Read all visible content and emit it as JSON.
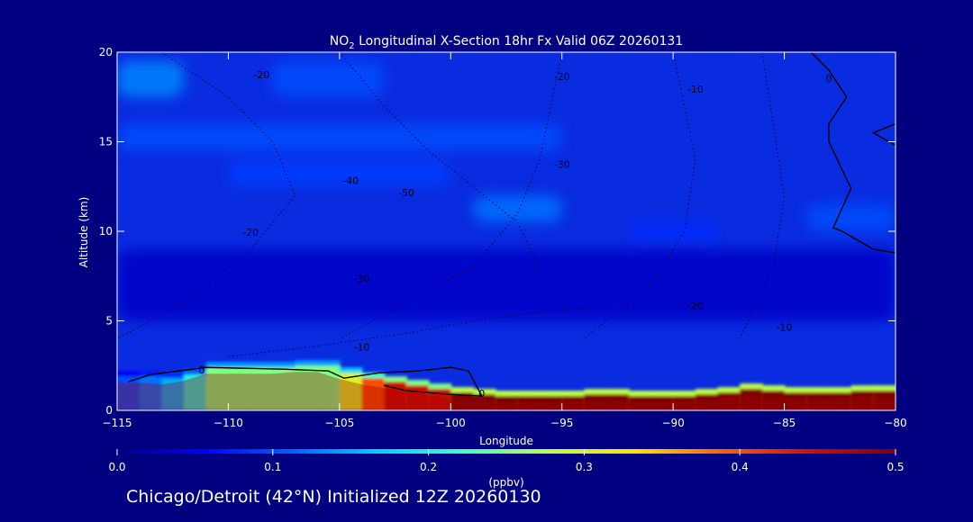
{
  "chart_data": {
    "type": "heatmap",
    "title": {
      "prefix": "NO",
      "subscript": "2",
      "suffix": " Longitudinal X-Section 18hr  Fx Valid 06Z 20260131"
    },
    "xlabel": "Longitude",
    "ylabel": "Altitude (km)",
    "xlim": [
      -115,
      -80
    ],
    "ylim": [
      0,
      20
    ],
    "x_ticks": [
      -115,
      -110,
      -105,
      -100,
      -95,
      -90,
      -85,
      -80
    ],
    "y_ticks": [
      0,
      5,
      10,
      15,
      20
    ],
    "colorbar": {
      "label": "(ppbv)",
      "range": [
        0.0,
        0.5
      ],
      "tick_labels": [
        "0.0",
        "0.1",
        "0.2",
        "0.3",
        "0.4",
        "0.5"
      ],
      "colors": [
        "#000080",
        "#0000ff",
        "#0060ff",
        "#00d0ff",
        "#40ffc0",
        "#c0ff40",
        "#ffe000",
        "#ff6000",
        "#d01000",
        "#800000"
      ]
    },
    "surface_profile": {
      "lon": [
        -115,
        -114,
        -113,
        -112,
        -111,
        -110,
        -109,
        -108,
        -107,
        -106,
        -105,
        -104,
        -103,
        -102,
        -101,
        -100,
        -99,
        -98,
        -97,
        -96,
        -95,
        -94,
        -93,
        -92,
        -91,
        -90,
        -89,
        -88,
        -87,
        -86,
        -85,
        -84,
        -83,
        -82,
        -81,
        -80
      ],
      "alt_km": [
        1.7,
        1.7,
        1.6,
        1.8,
        2.2,
        2.2,
        2.2,
        2.2,
        2.3,
        2.3,
        1.9,
        1.6,
        1.4,
        1.2,
        1.0,
        0.8,
        0.7,
        0.6,
        0.6,
        0.6,
        0.6,
        0.7,
        0.7,
        0.6,
        0.6,
        0.6,
        0.7,
        0.8,
        1.0,
        0.9,
        0.8,
        0.8,
        0.8,
        0.9,
        0.9,
        0.9
      ]
    },
    "surface_layer_ppbv": [
      0.1,
      0.12,
      0.15,
      0.2,
      0.25,
      0.25,
      0.25,
      0.25,
      0.25,
      0.25,
      0.3,
      0.4,
      0.45,
      0.45,
      0.45,
      0.5,
      0.5,
      0.5,
      0.5,
      0.5,
      0.5,
      0.5,
      0.5,
      0.5,
      0.5,
      0.5,
      0.5,
      0.5,
      0.5,
      0.5,
      0.5,
      0.5,
      0.5,
      0.5,
      0.5,
      0.5
    ],
    "upper_bands": [
      {
        "lon_range": [
          -115,
          -112
        ],
        "alt_range": [
          17.5,
          19.5
        ],
        "ppbv": 0.13
      },
      {
        "lon_range": [
          -108,
          -103
        ],
        "alt_range": [
          17.5,
          19.5
        ],
        "ppbv": 0.1
      },
      {
        "lon_range": [
          -115,
          -95
        ],
        "alt_range": [
          14.5,
          16.0
        ],
        "ppbv": 0.1
      },
      {
        "lon_range": [
          -110,
          -100
        ],
        "alt_range": [
          12.5,
          14.0
        ],
        "ppbv": 0.09
      },
      {
        "lon_range": [
          -99,
          -95
        ],
        "alt_range": [
          10.5,
          12.0
        ],
        "ppbv": 0.12
      },
      {
        "lon_range": [
          -92,
          -88
        ],
        "alt_range": [
          9.5,
          10.5
        ],
        "ppbv": 0.08
      },
      {
        "lon_range": [
          -84,
          -80
        ],
        "alt_range": [
          10.0,
          11.5
        ],
        "ppbv": 0.1
      },
      {
        "lon_range": [
          -115,
          -80
        ],
        "alt_range": [
          5.0,
          9.0
        ],
        "ppbv": 0.03
      }
    ],
    "contour_labels": [
      {
        "lon": -108.5,
        "alt": 18.7,
        "text": "-20"
      },
      {
        "lon": -104.5,
        "alt": 12.8,
        "text": "-40"
      },
      {
        "lon": -102.0,
        "alt": 12.1,
        "text": "-50"
      },
      {
        "lon": -109.0,
        "alt": 9.9,
        "text": "-20"
      },
      {
        "lon": -104.0,
        "alt": 7.3,
        "text": "-30"
      },
      {
        "lon": -104.0,
        "alt": 3.5,
        "text": "-10"
      },
      {
        "lon": -111.2,
        "alt": 2.2,
        "text": "0"
      },
      {
        "lon": -95.0,
        "alt": 18.6,
        "text": "-20"
      },
      {
        "lon": -95.0,
        "alt": 13.7,
        "text": "-30"
      },
      {
        "lon": -89.0,
        "alt": 17.9,
        "text": "-10"
      },
      {
        "lon": -89.0,
        "alt": 5.8,
        "text": "-20"
      },
      {
        "lon": -85.0,
        "alt": 4.6,
        "text": "-10"
      },
      {
        "lon": -83.0,
        "alt": 18.5,
        "text": "0"
      },
      {
        "lon": -98.6,
        "alt": 0.9,
        "text": "0"
      }
    ],
    "zero_contour_right": {
      "lon": [
        -83.8,
        -83.0,
        -82.2,
        -83.0,
        -83.0,
        -82.0,
        -82.8,
        -82.4,
        -81.0,
        -80.0
      ],
      "alt": [
        20.0,
        19.0,
        17.5,
        16.0,
        15.0,
        12.4,
        10.2,
        10.0,
        9.0,
        8.8
      ]
    },
    "zero_contour_edge": {
      "lon": [
        -80.0,
        -81.0,
        -80.0
      ],
      "alt": [
        16.0,
        15.5,
        14.8
      ]
    },
    "zero_contour_low": {
      "lon": [
        -114.5,
        -113.5,
        -111.0,
        -107.5,
        -105.5,
        -104.8,
        -103.2,
        -101.5,
        -100.0,
        -99.2,
        -98.6,
        -100.2,
        -102.0,
        -103.0
      ],
      "alt": [
        1.6,
        2.0,
        2.4,
        2.3,
        2.2,
        1.8,
        2.1,
        2.2,
        2.4,
        2.2,
        0.8,
        0.9,
        1.1,
        1.4
      ]
    },
    "dotted_contours": [
      {
        "lon": [
          -113,
          -110,
          -108,
          -107,
          -109,
          -112,
          -115
        ],
        "alt": [
          20,
          17.5,
          15,
          12,
          9,
          6,
          4
        ]
      },
      {
        "lon": [
          -105,
          -103,
          -101,
          -99,
          -97,
          -96
        ],
        "alt": [
          20,
          17,
          14.5,
          12.5,
          10.5,
          8
        ]
      },
      {
        "lon": [
          -110,
          -106,
          -102,
          -99,
          -96,
          -93
        ],
        "alt": [
          3.0,
          3.6,
          4.3,
          5.0,
          5.5,
          5.8
        ]
      },
      {
        "lon": [
          -95,
          -95.5,
          -96,
          -97,
          -99,
          -102,
          -105
        ],
        "alt": [
          20,
          17,
          14,
          11,
          8,
          6,
          4
        ]
      },
      {
        "lon": [
          -90,
          -89.5,
          -89,
          -89.5,
          -91,
          -94
        ],
        "alt": [
          20,
          17,
          14,
          10,
          7,
          4
        ]
      },
      {
        "lon": [
          -86,
          -85.5,
          -85,
          -85.5,
          -87
        ],
        "alt": [
          20,
          16,
          12,
          8,
          4
        ]
      }
    ]
  },
  "footer": {
    "text": "Chicago/Detroit (42°N) Initialized 12Z 20260130"
  }
}
